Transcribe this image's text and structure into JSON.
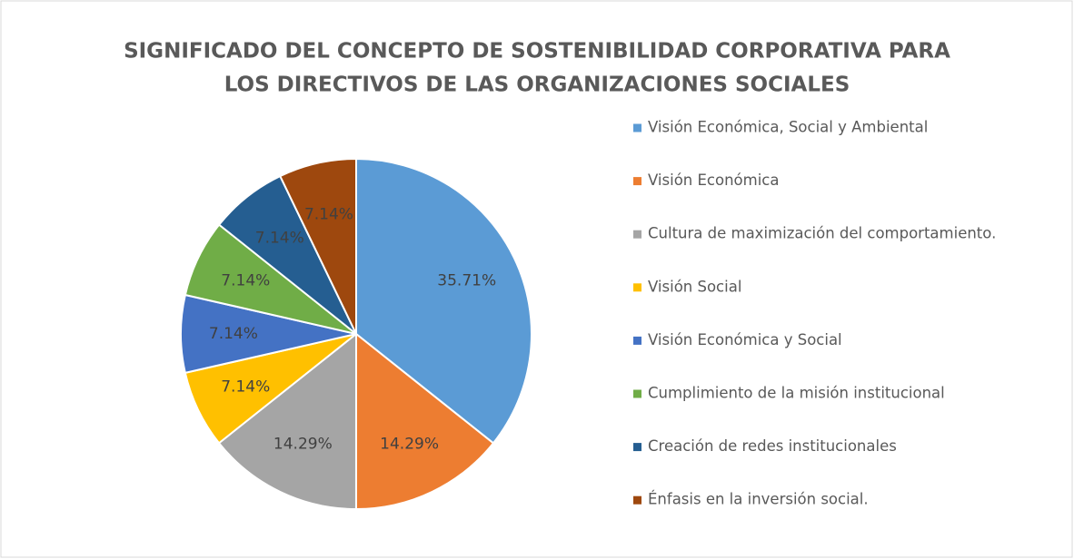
{
  "chart_data": {
    "type": "pie",
    "title": [
      "SIGNIFICADO DEL CONCEPTO DE SOSTENIBILIDAD CORPORATIVA PARA",
      "LOS DIRECTIVOS DE LAS ORGANIZACIONES SOCIALES"
    ],
    "categories": [
      "Visión Económica, Social y Ambiental",
      "Visión Económica",
      "Cultura de maximización del comportamiento.",
      "Visión Social",
      "Visión Económica y Social",
      "Cumplimiento de la misión institucional",
      "Creación de redes institucionales",
      "Énfasis en la inversión social."
    ],
    "values": [
      35.71,
      14.29,
      14.29,
      7.14,
      7.14,
      7.14,
      7.14,
      7.14
    ],
    "value_labels": [
      "35.71%",
      "14.29%",
      "14.29%",
      "7.14%",
      "7.14%",
      "7.14%",
      "7.14%",
      "7.14%"
    ],
    "colors": [
      "#5b9bd5",
      "#ed7d31",
      "#a5a5a5",
      "#ffc000",
      "#4472c4",
      "#70ad47",
      "#255e91",
      "#9e480e"
    ],
    "legend": "right"
  }
}
